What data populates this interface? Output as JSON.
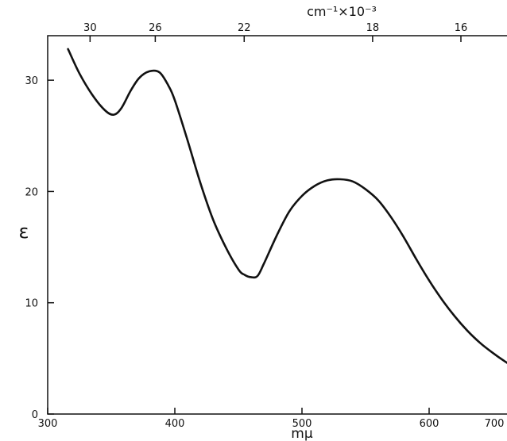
{
  "chart_data": {
    "type": "line",
    "title": "",
    "xlabel": "mμ",
    "ylabel": "ε",
    "x2label": "cm⁻¹×10⁻³",
    "xlim": [
      300,
      700
    ],
    "ylim": [
      0,
      34
    ],
    "grid": false,
    "x_ticks": [
      {
        "value": 300,
        "label": "300"
      },
      {
        "value": 400,
        "label": "400"
      },
      {
        "value": 500,
        "label": "500"
      },
      {
        "value": 600,
        "label": "600"
      },
      {
        "value": 700,
        "label": "700"
      }
    ],
    "y_ticks": [
      {
        "value": 0,
        "label": "0"
      },
      {
        "value": 10,
        "label": "10"
      },
      {
        "value": 20,
        "label": "20"
      },
      {
        "value": 30,
        "label": "30"
      }
    ],
    "x2_ticks": [
      {
        "value": 30,
        "label": "30"
      },
      {
        "value": 26,
        "label": "26"
      },
      {
        "value": 22,
        "label": "22"
      },
      {
        "value": 18,
        "label": "18"
      },
      {
        "value": 16,
        "label": "16"
      }
    ],
    "series": [
      {
        "x": [
          316,
          325,
          335,
          345,
          352,
          358,
          365,
          372,
          380,
          388,
          395,
          400,
          410,
          420,
          430,
          440,
          450,
          455,
          460,
          465,
          470,
          480,
          490,
          500,
          510,
          520,
          530,
          540,
          550,
          560,
          570,
          580,
          590,
          600,
          610,
          620,
          630,
          640,
          650,
          660,
          670,
          680,
          693
        ],
        "y": [
          32.8,
          30.6,
          28.7,
          27.3,
          26.9,
          27.5,
          29.0,
          30.2,
          30.8,
          30.7,
          29.5,
          28.2,
          24.6,
          20.8,
          17.5,
          15.0,
          13.0,
          12.5,
          12.3,
          12.4,
          13.5,
          16.0,
          18.2,
          19.6,
          20.5,
          21.0,
          21.1,
          20.9,
          20.2,
          19.2,
          17.7,
          15.9,
          13.9,
          12.0,
          10.3,
          8.8,
          7.5,
          6.4,
          5.5,
          4.7,
          4.0,
          3.5,
          3.0
        ]
      }
    ]
  }
}
